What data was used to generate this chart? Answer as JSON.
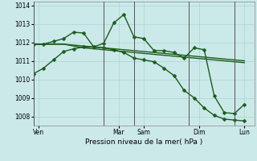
{
  "xlabel": "Pression niveau de la mer( hPa )",
  "ylim": [
    1007.5,
    1014.2
  ],
  "yticks": [
    1008,
    1009,
    1010,
    1011,
    1012,
    1013,
    1014
  ],
  "background_color": "#cce9e9",
  "grid_color": "#aad4d4",
  "line_color": "#1a5c1a",
  "day_separator_color": "#555555",
  "xtick_labels": [
    "Ven",
    "Mar",
    "Sam",
    "Dim",
    "Lun"
  ],
  "xtick_positions": [
    0.5,
    8.5,
    11.0,
    16.5,
    21.0
  ],
  "day_lines_x": [
    0,
    7,
    10,
    15.5,
    20
  ],
  "xlim": [
    0,
    22
  ],
  "series1_x": [
    0,
    1,
    2,
    3,
    4,
    5,
    6,
    7,
    8,
    9,
    10,
    11,
    12,
    13,
    14,
    15,
    16,
    17,
    18,
    19,
    20,
    21
  ],
  "series1_y": [
    1011.9,
    1011.9,
    1011.9,
    1011.9,
    1011.85,
    1011.8,
    1011.75,
    1011.7,
    1011.65,
    1011.6,
    1011.55,
    1011.5,
    1011.45,
    1011.4,
    1011.35,
    1011.3,
    1011.25,
    1011.2,
    1011.15,
    1011.1,
    1011.05,
    1011.0
  ],
  "series2_x": [
    0,
    1,
    2,
    3,
    4,
    5,
    6,
    7,
    8,
    9,
    10,
    11,
    12,
    13,
    14,
    15,
    16,
    17,
    18,
    19,
    20,
    21
  ],
  "series2_y": [
    1011.9,
    1011.9,
    1011.9,
    1011.9,
    1011.8,
    1011.7,
    1011.65,
    1011.6,
    1011.55,
    1011.5,
    1011.45,
    1011.4,
    1011.35,
    1011.3,
    1011.25,
    1011.2,
    1011.15,
    1011.1,
    1011.05,
    1011.0,
    1010.95,
    1010.9
  ],
  "series3_x": [
    0,
    1,
    2,
    3,
    4,
    5,
    6,
    7,
    8,
    9,
    10,
    11,
    12,
    13,
    14,
    15,
    16,
    17,
    18,
    19,
    20,
    21
  ],
  "series3_y": [
    1010.3,
    1010.6,
    1011.05,
    1011.5,
    1011.65,
    1011.75,
    1011.75,
    1011.7,
    1011.6,
    1011.45,
    1011.15,
    1011.05,
    1010.95,
    1010.6,
    1010.2,
    1009.4,
    1009.0,
    1008.45,
    1008.05,
    1007.85,
    1007.8,
    1007.75
  ],
  "series4_x": [
    0,
    1,
    2,
    3,
    4,
    5,
    6,
    7,
    8,
    9,
    10,
    11,
    12,
    13,
    14,
    15,
    16,
    17,
    18,
    19,
    20,
    21
  ],
  "series4_y": [
    1011.9,
    1011.9,
    1012.05,
    1012.2,
    1012.55,
    1012.5,
    1011.75,
    1011.95,
    1013.05,
    1013.5,
    1012.3,
    1012.2,
    1011.55,
    1011.55,
    1011.45,
    1011.15,
    1011.7,
    1011.6,
    1009.1,
    1008.2,
    1008.15,
    1008.65
  ],
  "marker_size": 2.5,
  "line_width": 1.0
}
